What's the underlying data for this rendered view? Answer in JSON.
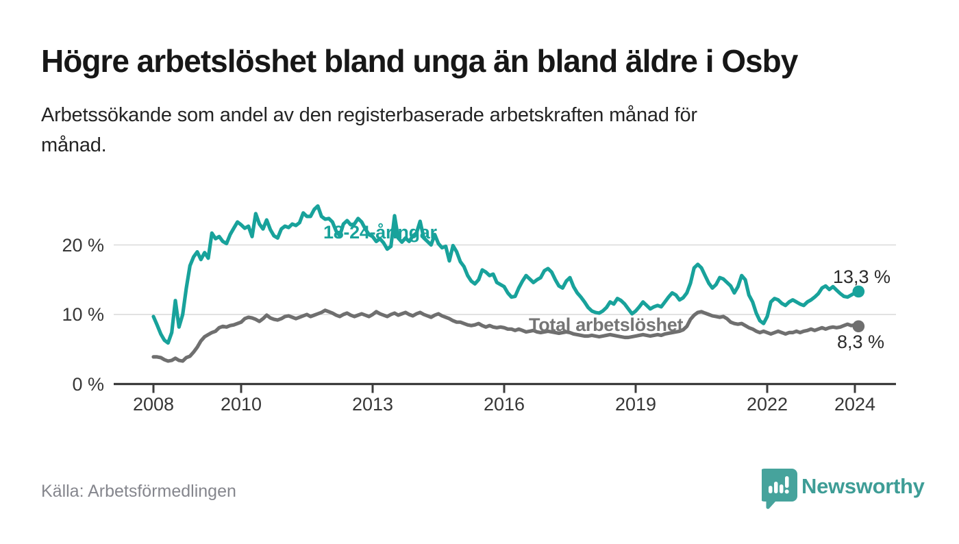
{
  "header": {
    "title": "Högre arbetslöshet bland unga än bland äldre i Osby",
    "subtitle_line1": "Arbetssökande som andel av den registerbaserade arbetskraften månad för",
    "subtitle_line2": "månad."
  },
  "footer": {
    "source": "Källa: Arbetsförmedlingen",
    "brand": "Newsworthy"
  },
  "colors": {
    "accent_teal": "#18a29b",
    "series_gray": "#6f6f6f",
    "axis": "#3b3b3b",
    "gridline": "#d9d9d9",
    "value_label": "#2b2b2b",
    "logo_teal": "#46a39c"
  },
  "chart_data": {
    "type": "line",
    "title": "Högre arbetslöshet bland unga än bland äldre i Osby",
    "subtitle": "Arbetssökande som andel av den registerbaserade arbetskraften månad för månad.",
    "frequency": "monthly",
    "start": "2008-01",
    "end": "2024-02",
    "unit": "%",
    "grid": "horizontal",
    "legend_position": "inline-labels",
    "xlim": [
      2008.0,
      2024.33
    ],
    "ylim": [
      0,
      26
    ],
    "x_ticks": [
      "2008",
      "2010",
      "2013",
      "2016",
      "2019",
      "2022",
      "2024"
    ],
    "x_tick_years": [
      2008,
      2010,
      2013,
      2016,
      2019,
      2022,
      2024
    ],
    "y_ticks": [
      {
        "value": 0,
        "label": "0 %"
      },
      {
        "value": 10,
        "label": "10 %"
      },
      {
        "value": 20,
        "label": "20 %"
      }
    ],
    "series": [
      {
        "name": "18-24-åringar",
        "color": "#18a29b",
        "end_value": 13.3,
        "end_label": "13,3 %",
        "values": [
          9.7,
          8.5,
          7.2,
          6.3,
          5.9,
          7.4,
          12.0,
          8.2,
          10.0,
          13.8,
          17.0,
          18.3,
          19.0,
          17.9,
          18.9,
          18.1,
          21.7,
          20.9,
          21.2,
          20.5,
          20.2,
          21.5,
          22.4,
          23.3,
          22.9,
          22.4,
          22.7,
          21.2,
          24.5,
          23.0,
          22.3,
          23.6,
          22.2,
          21.3,
          21.0,
          22.3,
          22.7,
          22.5,
          23.0,
          22.8,
          23.2,
          24.6,
          24.1,
          24.1,
          25.1,
          25.6,
          24.1,
          23.7,
          23.8,
          23.3,
          22.0,
          21.3,
          23.0,
          23.5,
          22.9,
          23.0,
          23.8,
          23.3,
          22.3,
          21.5,
          21.2,
          20.5,
          20.9,
          20.3,
          19.4,
          19.8,
          24.2,
          21.0,
          20.4,
          21.0,
          20.5,
          21.3,
          21.7,
          23.4,
          21.0,
          20.5,
          20.0,
          21.5,
          20.2,
          19.6,
          19.8,
          17.7,
          19.9,
          19.0,
          17.6,
          16.9,
          15.6,
          14.8,
          14.4,
          15.0,
          16.4,
          16.1,
          15.6,
          15.8,
          14.6,
          14.3,
          14.0,
          13.1,
          12.5,
          12.6,
          13.8,
          14.8,
          15.6,
          15.1,
          14.6,
          15.0,
          15.3,
          16.3,
          16.6,
          16.1,
          15.0,
          14.1,
          13.8,
          14.8,
          15.3,
          14.0,
          13.1,
          12.5,
          11.8,
          11.0,
          10.5,
          10.3,
          10.2,
          10.5,
          11.0,
          11.8,
          11.5,
          12.3,
          12.0,
          11.5,
          10.8,
          10.1,
          10.5,
          11.1,
          11.8,
          11.3,
          10.8,
          11.1,
          11.3,
          11.1,
          11.8,
          12.5,
          13.1,
          12.8,
          12.1,
          12.4,
          13.1,
          14.5,
          16.7,
          17.2,
          16.7,
          15.6,
          14.5,
          13.8,
          14.3,
          15.3,
          15.1,
          14.6,
          14.1,
          13.1,
          14.0,
          15.6,
          15.0,
          12.8,
          11.8,
          10.2,
          9.1,
          8.7,
          9.7,
          11.8,
          12.3,
          12.1,
          11.6,
          11.3,
          11.8,
          12.1,
          11.8,
          11.5,
          11.3,
          11.8,
          12.1,
          12.5,
          13.0,
          13.8,
          14.1,
          13.6,
          14.0,
          13.5,
          13.0,
          12.6,
          12.5,
          12.8,
          13.1,
          13.3
        ]
      },
      {
        "name": "Total arbetslöshet",
        "color": "#6f6f6f",
        "end_value": 8.3,
        "end_label": "8,3 %",
        "values": [
          3.9,
          3.9,
          3.8,
          3.5,
          3.3,
          3.4,
          3.7,
          3.4,
          3.3,
          3.8,
          4.0,
          4.6,
          5.3,
          6.2,
          6.8,
          7.1,
          7.4,
          7.6,
          8.1,
          8.3,
          8.2,
          8.4,
          8.5,
          8.7,
          8.9,
          9.4,
          9.6,
          9.5,
          9.3,
          9.0,
          9.4,
          9.9,
          9.5,
          9.3,
          9.2,
          9.4,
          9.7,
          9.8,
          9.6,
          9.4,
          9.6,
          9.8,
          10.0,
          9.7,
          9.9,
          10.1,
          10.3,
          10.6,
          10.4,
          10.2,
          9.9,
          9.7,
          10.0,
          10.2,
          9.9,
          9.7,
          9.9,
          10.1,
          9.9,
          9.7,
          10.0,
          10.4,
          10.1,
          9.9,
          9.7,
          10.0,
          10.2,
          9.9,
          10.1,
          10.3,
          10.0,
          9.8,
          10.1,
          10.3,
          10.0,
          9.8,
          9.6,
          9.9,
          10.1,
          9.8,
          9.6,
          9.4,
          9.1,
          8.9,
          8.9,
          8.7,
          8.5,
          8.4,
          8.5,
          8.7,
          8.4,
          8.2,
          8.4,
          8.2,
          8.1,
          8.2,
          8.1,
          7.9,
          7.9,
          7.7,
          7.9,
          7.7,
          7.5,
          7.6,
          7.7,
          7.5,
          7.4,
          7.5,
          7.6,
          7.5,
          7.4,
          7.3,
          7.4,
          7.5,
          7.4,
          7.2,
          7.1,
          7.0,
          6.9,
          6.9,
          7.0,
          6.9,
          6.8,
          6.9,
          7.0,
          7.1,
          7.0,
          6.9,
          6.8,
          6.7,
          6.7,
          6.8,
          6.9,
          7.0,
          7.1,
          7.0,
          6.9,
          7.0,
          7.1,
          7.0,
          7.2,
          7.3,
          7.4,
          7.5,
          7.6,
          7.8,
          8.3,
          9.3,
          9.9,
          10.3,
          10.4,
          10.2,
          10.0,
          9.8,
          9.7,
          9.6,
          9.7,
          9.4,
          8.9,
          8.7,
          8.6,
          8.7,
          8.4,
          8.1,
          7.9,
          7.6,
          7.4,
          7.6,
          7.4,
          7.2,
          7.4,
          7.6,
          7.4,
          7.2,
          7.4,
          7.4,
          7.6,
          7.4,
          7.6,
          7.7,
          7.9,
          7.7,
          7.9,
          8.1,
          7.9,
          8.1,
          8.2,
          8.1,
          8.2,
          8.4,
          8.6,
          8.4,
          8.5,
          8.3
        ]
      }
    ]
  }
}
